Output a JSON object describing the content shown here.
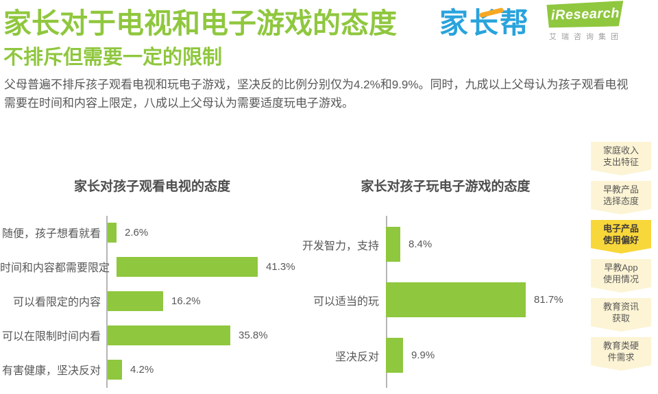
{
  "header": {
    "title": "家长对于电视和电子游戏的态度",
    "subtitle": "不排斥但需要一定的限制",
    "description": "父母普遍不排斥孩子观看电视和玩电子游戏，坚决反的比例分别仅为4.2%和9.9%。同时，九成以上父母认为孩子观看电视需要在时间和内容上限定，八成以上父母认为需要适度玩电子游戏。",
    "logo_jiazhangbang": "家长帮",
    "logo_iresearch": "iResearch",
    "logo_iresearch_subtitle": "艾瑞咨询集团"
  },
  "chart_data": [
    {
      "type": "bar",
      "orientation": "horizontal",
      "title": "家长对孩子观看电视的态度",
      "categories": [
        "随便，孩子想看就看",
        "时间和内容都需要限定",
        "可以看限定的内容",
        "可以在限制时间内看",
        "有害健康，坚决反对"
      ],
      "values": [
        2.6,
        41.3,
        16.2,
        35.8,
        4.2
      ],
      "value_labels": [
        "2.6%",
        "41.3%",
        "16.2%",
        "35.8%",
        "4.2%"
      ],
      "xlim": [
        0,
        45
      ],
      "bar_color": "#8fc73e",
      "grid": false,
      "value_label_position": "right-of-bar"
    },
    {
      "type": "bar",
      "orientation": "horizontal",
      "title": "家长对孩子玩电子游戏的态度",
      "categories": [
        "开发智力，支持",
        "可以适当的玩",
        "坚决反对"
      ],
      "values": [
        8.4,
        81.7,
        9.9
      ],
      "value_labels": [
        "8.4%",
        "81.7%",
        "9.9%"
      ],
      "xlim": [
        0,
        90
      ],
      "bar_color": "#8fc73e",
      "grid": false,
      "value_label_position": "right-of-bar"
    }
  ],
  "sidebar": {
    "tabs": [
      {
        "line1": "家庭收入",
        "line2": "支出特征",
        "active": false
      },
      {
        "line1": "早教产品",
        "line2": "选择态度",
        "active": false
      },
      {
        "line1": "电子产品",
        "line2": "使用偏好",
        "active": true
      },
      {
        "line1": "早教App",
        "line2": "使用情况",
        "active": false
      },
      {
        "line1": "教育资讯",
        "line2": "获取",
        "active": false
      },
      {
        "line1": "教育类硬",
        "line2": "件需求",
        "active": false
      }
    ]
  },
  "colors": {
    "accent_green": "#8fc73e",
    "logo_blue": "#29a3dc",
    "logo_orange": "#f7a823",
    "text_gray": "#595757",
    "chart_title_gray": "#4d4d4d",
    "axis_gray": "#b5b5b6",
    "tab_inactive_bg": "#fcf4d4",
    "tab_active_bg": "#f8d73b"
  }
}
